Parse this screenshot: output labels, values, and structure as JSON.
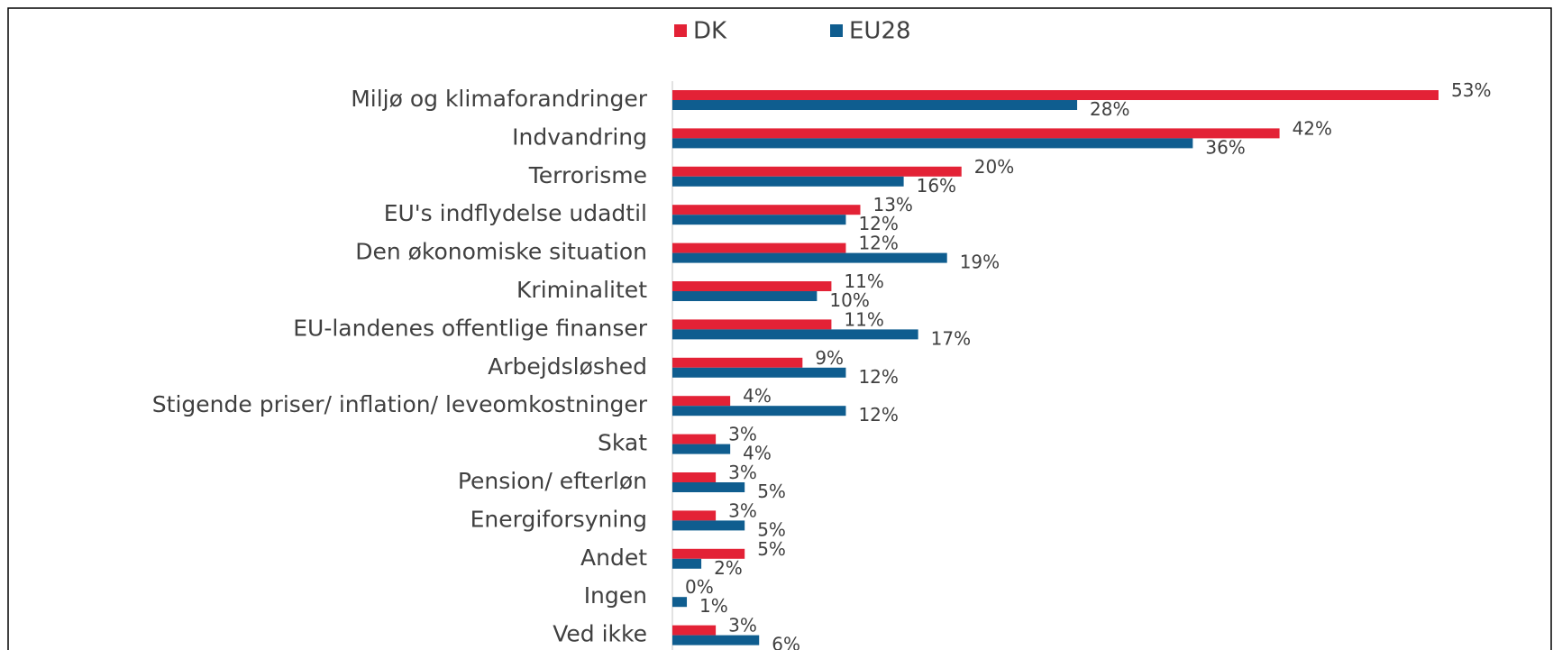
{
  "chart_data": {
    "type": "bar",
    "orientation": "horizontal",
    "categories": [
      "Miljø og klimaforandringer",
      "Indvandring",
      "Terrorisme",
      "EU's indflydelse udadtil",
      "Den økonomiske situation",
      "Kriminalitet",
      "EU-landenes offentlige finanser",
      "Arbejdsløshed",
      "Stigende priser/ inflation/ leveomkostninger",
      "Skat",
      "Pension/ efterløn",
      "Energiforsyning",
      "Andet",
      "Ingen",
      "Ved ikke"
    ],
    "series": [
      {
        "name": "DK",
        "color": "#e32236",
        "values": [
          53,
          42,
          20,
          13,
          12,
          11,
          11,
          9,
          4,
          3,
          3,
          3,
          5,
          0,
          3
        ],
        "value_labels": [
          "53%",
          "42%",
          "20%",
          "13%",
          "12%",
          "11%",
          "11%",
          "9%",
          "4%",
          "3%",
          "3%",
          "3%",
          "5%",
          "0%",
          "3%"
        ]
      },
      {
        "name": "EU28",
        "color": "#0f5d8f",
        "values": [
          28,
          36,
          16,
          12,
          19,
          10,
          17,
          12,
          12,
          4,
          5,
          5,
          2,
          1,
          6
        ],
        "value_labels": [
          "28%",
          "36%",
          "16%",
          "12%",
          "19%",
          "10%",
          "17%",
          "12%",
          "12%",
          "4%",
          "5%",
          "5%",
          "2%",
          "1%",
          "6%"
        ]
      }
    ],
    "legend": "top"
  }
}
